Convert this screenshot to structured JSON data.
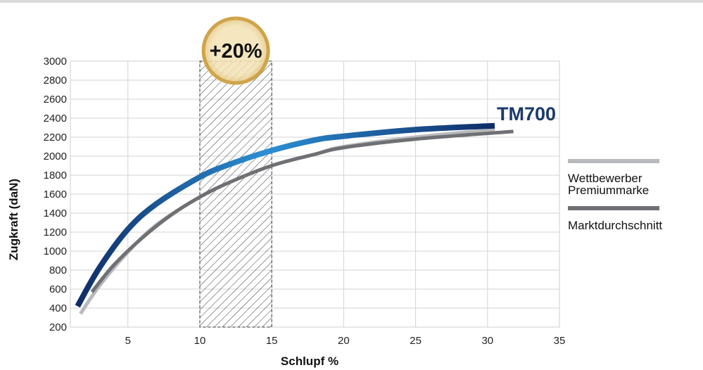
{
  "chart_data": {
    "type": "line",
    "title": "",
    "xlabel": "Schlupf %",
    "ylabel": "Zugkraft (daN)",
    "xlim": [
      1,
      35
    ],
    "ylim": [
      200,
      3000
    ],
    "x_ticks": [
      5,
      10,
      15,
      20,
      25,
      30,
      35
    ],
    "y_ticks": [
      200,
      400,
      600,
      800,
      1000,
      1200,
      1400,
      1600,
      1800,
      2000,
      2200,
      2400,
      2600,
      2800,
      3000
    ],
    "grid": true,
    "highlight_band": {
      "x_from": 10,
      "x_to": 15,
      "pattern": "hatched"
    },
    "badge": {
      "label": "+20%",
      "x": 12.5
    },
    "series": [
      {
        "name": "TM700",
        "color": "#1e5aa0",
        "label_style": "inline-end",
        "x": [
          1.5,
          3,
          5,
          7,
          10,
          12,
          15,
          18,
          20,
          25,
          30.5
        ],
        "y": [
          420,
          820,
          1230,
          1500,
          1780,
          1910,
          2060,
          2170,
          2210,
          2280,
          2320
        ]
      },
      {
        "name": "Wettbewerber Premiummarke",
        "color": "#b7b9bc",
        "label_style": "legend",
        "x": [
          1.7,
          3,
          5,
          7,
          10,
          12,
          15,
          18,
          20,
          25,
          30.5
        ],
        "y": [
          340,
          630,
          990,
          1280,
          1570,
          1720,
          1900,
          2020,
          2100,
          2200,
          2280
        ]
      },
      {
        "name": "Marktdurchschnitt",
        "color": "#6f7074",
        "label_style": "legend",
        "x": [
          2.5,
          4,
          6,
          8,
          10,
          12,
          15,
          18,
          20,
          25,
          31.8
        ],
        "y": [
          570,
          850,
          1140,
          1380,
          1570,
          1720,
          1900,
          2020,
          2090,
          2180,
          2260
        ]
      }
    ]
  }
}
